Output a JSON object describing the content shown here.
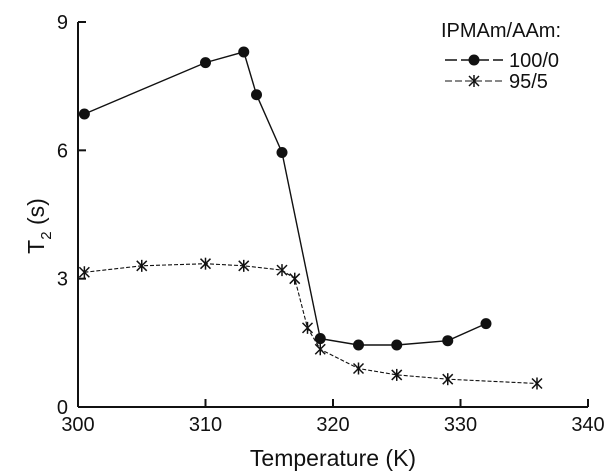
{
  "chart_data": {
    "type": "line",
    "xlabel": "Temperature (K)",
    "ylabel": "T",
    "ylabel_sub": "2",
    "ylabel_unit": " (s)",
    "xlim": [
      300,
      340
    ],
    "ylim": [
      0,
      9
    ],
    "xticks": [
      300,
      310,
      320,
      330,
      340
    ],
    "yticks": [
      0,
      3,
      6,
      9
    ],
    "grid": false,
    "legend": {
      "title": "IPMAm/AAm:",
      "placement": "top-right"
    },
    "series": [
      {
        "name": "100/0",
        "marker": "circle",
        "line": "solid",
        "x": [
          300.5,
          310,
          313,
          314,
          316,
          319,
          322,
          325,
          329,
          332
        ],
        "y": [
          6.85,
          8.05,
          8.3,
          7.3,
          5.95,
          1.6,
          1.45,
          1.45,
          1.55,
          1.95
        ]
      },
      {
        "name": "95/5",
        "marker": "asterisk",
        "line": "dashed",
        "x": [
          300.5,
          305,
          310,
          313,
          316,
          317,
          318,
          319,
          322,
          325,
          329,
          336
        ],
        "y": [
          3.15,
          3.3,
          3.35,
          3.3,
          3.2,
          3.0,
          1.85,
          1.35,
          0.9,
          0.75,
          0.65,
          0.55
        ]
      }
    ]
  },
  "colors": {
    "ink": "#111111"
  }
}
